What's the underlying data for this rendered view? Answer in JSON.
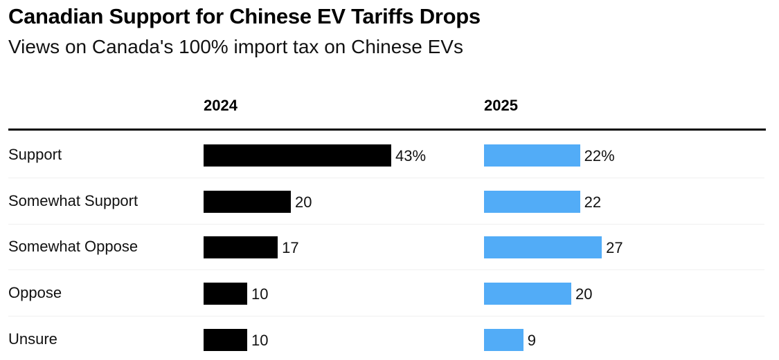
{
  "chart_data": {
    "type": "bar",
    "orientation": "horizontal",
    "title": "Canadian Support for Chinese EV Tariffs Drops",
    "subtitle": "Views on Canada's 100% import tax on Chinese EVs",
    "categories": [
      "Support",
      "Somewhat Support",
      "Somewhat Oppose",
      "Oppose",
      "Unsure"
    ],
    "series": [
      {
        "name": "2024",
        "color": "#000000",
        "values": [
          43,
          20,
          17,
          10,
          10
        ],
        "labels": [
          "43%",
          "20",
          "17",
          "10",
          "10"
        ]
      },
      {
        "name": "2025",
        "color": "#52acf7",
        "values": [
          22,
          22,
          27,
          20,
          9
        ],
        "labels": [
          "22%",
          "22",
          "27",
          "20",
          "9"
        ]
      }
    ],
    "unit": "%",
    "xlim": [
      0,
      43
    ],
    "grid": false,
    "legend": "column headers"
  }
}
